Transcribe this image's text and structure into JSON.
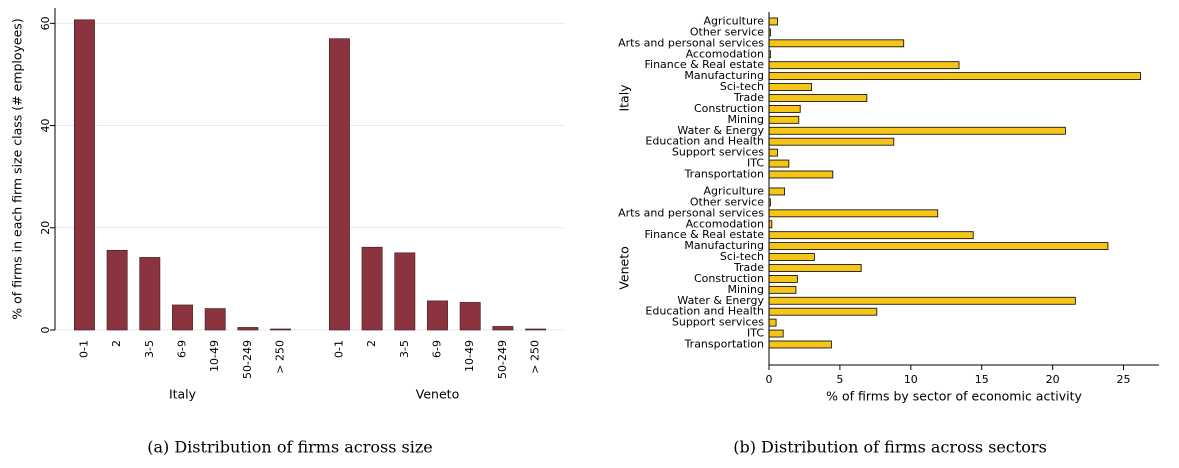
{
  "chart_data": [
    {
      "type": "bar",
      "y_label": "% of firms in each firm size class (# employees)",
      "caption": "(a)  Distribution of firms across size",
      "categories": [
        "0-1",
        "2",
        "3-5",
        "6-9",
        "10-49",
        "50-249",
        "> 250"
      ],
      "groups": [
        {
          "name": "Italy",
          "values": [
            60.7,
            15.6,
            14.2,
            4.9,
            4.2,
            0.5,
            0.2
          ]
        },
        {
          "name": "Veneto",
          "values": [
            57.0,
            16.2,
            15.1,
            5.7,
            5.4,
            0.7,
            0.2
          ]
        }
      ],
      "color": "#8b3440",
      "ylim": [
        0,
        63
      ],
      "yticks": [
        0,
        20,
        40,
        60
      ],
      "grid": true
    },
    {
      "type": "barh",
      "x_label": "% of firms by sector of economic activity",
      "caption": "(b)  Distribution of firms across sectors",
      "categories": [
        "Agriculture",
        "Other service",
        "Arts and personal services",
        "Accomodation",
        "Finance & Real estate",
        "Manufacturing",
        "Sci-tech",
        "Trade",
        "Construction",
        "Mining",
        "Water & Energy",
        "Education and Health",
        "Support services",
        "ITC",
        "Transportation"
      ],
      "groups": [
        {
          "name": "Italy",
          "values": [
            0.6,
            0.1,
            9.5,
            0.1,
            13.4,
            26.2,
            3.0,
            6.9,
            2.2,
            2.1,
            20.9,
            8.8,
            0.6,
            1.4,
            4.5
          ]
        },
        {
          "name": "Veneto",
          "values": [
            1.1,
            0.1,
            11.9,
            0.2,
            14.4,
            23.9,
            3.2,
            6.5,
            2.0,
            1.9,
            21.6,
            7.6,
            0.5,
            1.0,
            4.4
          ]
        }
      ],
      "color": "#f5c518",
      "xlim": [
        0,
        27.5
      ],
      "xticks": [
        0,
        5,
        10,
        15,
        20,
        25
      ],
      "grid": false
    }
  ]
}
